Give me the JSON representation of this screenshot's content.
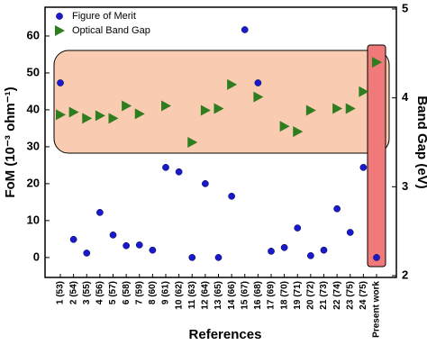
{
  "chart_data": {
    "type": "scatter",
    "x_label": "References",
    "y_label": "FoM (10⁻³ ohm⁻¹)",
    "y2_label": "Band Gap (eV)",
    "categories": [
      "1 (53)",
      "2 (54)",
      "3 (55)",
      "4 (56)",
      "5 (57)",
      "6 (58)",
      "7 (59)",
      "8 (60)",
      "9 (61)",
      "10 (62)",
      "11 (63)",
      "12 (64)",
      "13 (65)",
      "14 (66)",
      "15 (67)",
      "16 (68)",
      "17 (69)",
      "18 (70)",
      "19 (71)",
      "20 (72)",
      "21 (73)",
      "22 (74)",
      "23 (75)",
      "24 (75)",
      "Present work"
    ],
    "series": [
      {
        "name": "Figure of Merit",
        "color": "#1a1acc",
        "marker": "circle",
        "values": [
          47.3,
          4.9,
          1.2,
          12.2,
          6.1,
          3.2,
          3.4,
          2,
          24.4,
          23.2,
          0,
          20,
          0,
          16.6,
          61.7,
          47.3,
          1.7,
          2.7,
          8,
          0.5,
          2,
          13.2,
          6.8,
          24.4,
          0
        ]
      },
      {
        "name": "Optical Band Gap",
        "color": "#2e7d1e",
        "marker": "triangle",
        "axis": "y2",
        "values": [
          3.81,
          3.84,
          3.77,
          3.8,
          3.77,
          3.91,
          3.82,
          null,
          3.91,
          null,
          3.5,
          3.86,
          3.88,
          4.15,
          null,
          4.01,
          null,
          3.68,
          3.62,
          3.86,
          null,
          3.88,
          3.88,
          4.07,
          4.4
        ]
      }
    ],
    "ylim": [
      -5.4,
      67.8
    ],
    "yticks": [
      0,
      10,
      20,
      30,
      40,
      50,
      60
    ],
    "y2lim": [
      1.98,
      5.02
    ],
    "y2ticks": [
      2,
      3,
      4,
      5
    ],
    "legend": "upper left"
  }
}
